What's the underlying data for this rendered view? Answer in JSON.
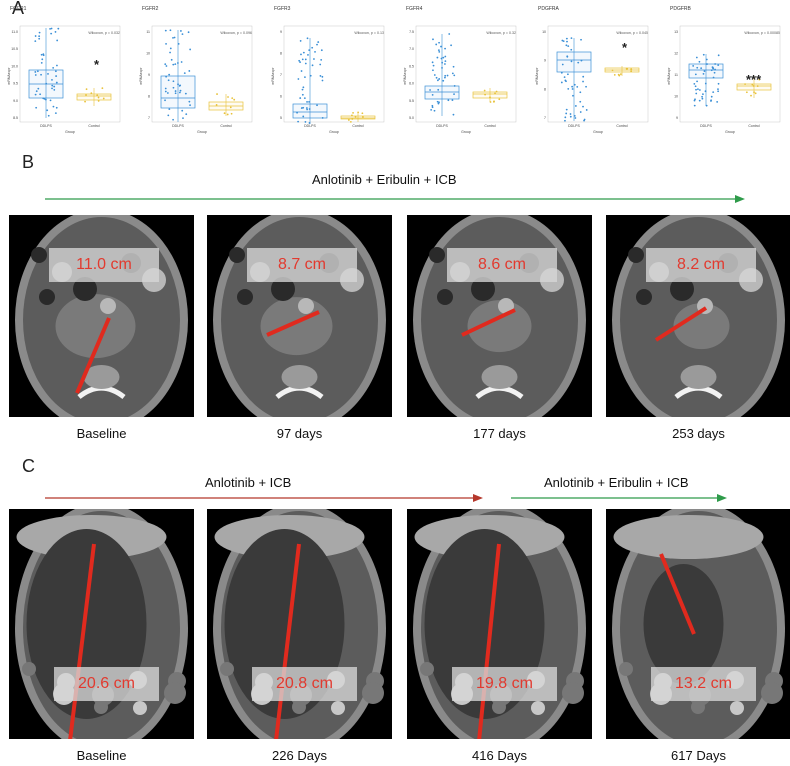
{
  "panels": {
    "a": "A",
    "b": "B",
    "c": "C"
  },
  "colors": {
    "ddlps": "#3a8fd6",
    "control": "#e8c23a",
    "arrow_green": "#2e9b4a",
    "arrow_red": "#b5372b",
    "measure": "#e02a1e"
  },
  "panel_a": {
    "plots": [
      {
        "title": "FGFR1",
        "stat": "Wilcoxon, p = 0.032",
        "sig": "*",
        "ylabel": "mRNAexpr",
        "yticks": [
          "11.0",
          "10.5",
          "10.0",
          "9.5",
          "9.0",
          "8.5"
        ],
        "xticks": [
          "DDLPS",
          "Control"
        ],
        "xlabel": "Group"
      },
      {
        "title": "FGFR2",
        "stat": "Wilcoxon, p = 0.096",
        "sig": "",
        "ylabel": "mRNAexpr",
        "yticks": [
          "11",
          "10",
          "9",
          "8",
          "7"
        ],
        "xticks": [
          "DDLPS",
          "Control"
        ],
        "xlabel": "Group"
      },
      {
        "title": "FGFR3",
        "stat": "Wilcoxon, p = 0.13",
        "sig": "",
        "ylabel": "mRNAexpr",
        "yticks": [
          "9",
          "8",
          "7",
          "6",
          "5"
        ],
        "xticks": [
          "DDLPS",
          "Control"
        ],
        "xlabel": "Group"
      },
      {
        "title": "FGFR4",
        "stat": "Wilcoxon, p = 0.32",
        "sig": "",
        "ylabel": "mRNAexpr",
        "yticks": [
          "7.5",
          "7.0",
          "6.5",
          "6.0",
          "5.5",
          "5.0"
        ],
        "xticks": [
          "DDLPS",
          "Control"
        ],
        "xlabel": "Group"
      },
      {
        "title": "PDGFRA",
        "stat": "Wilcoxon, p = 0.045",
        "sig": "*",
        "ylabel": "mRNAexpr",
        "yticks": [
          "10",
          "9",
          "8",
          "7"
        ],
        "xticks": [
          "DDLPS",
          "Control"
        ],
        "xlabel": "Group"
      },
      {
        "title": "PDGFRB",
        "stat": "Wilcoxon, p = 0.00085",
        "sig": "***",
        "ylabel": "mRNAexpr",
        "yticks": [
          "13",
          "12",
          "11",
          "10",
          "9"
        ],
        "xticks": [
          "DDLPS",
          "Control"
        ],
        "xlabel": "Group"
      }
    ]
  },
  "panel_b": {
    "treatment": "Anlotinib + Eribulin + ICB",
    "scans": [
      {
        "measure": "11.0 cm",
        "caption": "Baseline"
      },
      {
        "measure": "8.7 cm",
        "caption": "97 days"
      },
      {
        "measure": "8.6 cm",
        "caption": "177 days"
      },
      {
        "measure": "8.2 cm",
        "caption": "253 days"
      }
    ]
  },
  "panel_c": {
    "treatment_1": "Anlotinib + ICB",
    "treatment_2": "Anlotinib + Eribulin + ICB",
    "scans": [
      {
        "measure": "20.6 cm",
        "caption": "Baseline"
      },
      {
        "measure": "20.8 cm",
        "caption": "226 Days"
      },
      {
        "measure": "19.8 cm",
        "caption": "416 Days"
      },
      {
        "measure": "13.2 cm",
        "caption": "617 Days"
      }
    ]
  }
}
